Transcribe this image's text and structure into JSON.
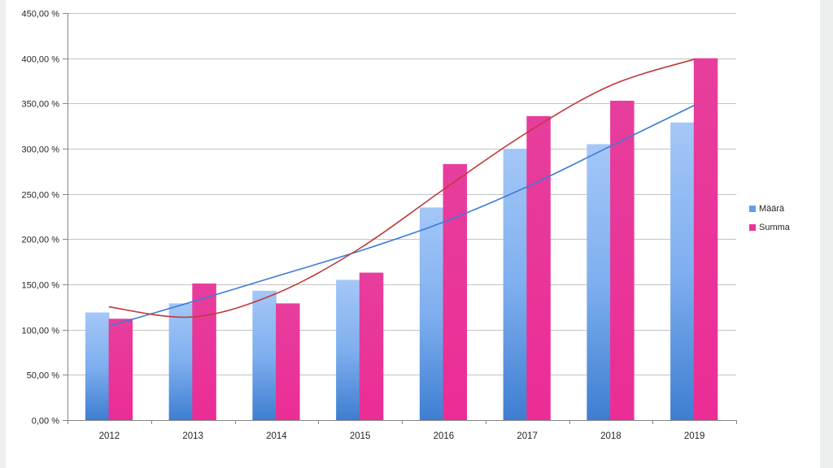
{
  "page": {
    "background": "#ffffff",
    "left_margin_color": "#efefef",
    "right_margin_color": "#edeeee"
  },
  "chart_data": {
    "type": "bar",
    "title": "",
    "xlabel": "",
    "ylabel": "",
    "categories": [
      "2012",
      "2013",
      "2014",
      "2015",
      "2016",
      "2017",
      "2018",
      "2019"
    ],
    "series": [
      {
        "name": "Määrä",
        "values": [
          119,
          129,
          143,
          155,
          235,
          300,
          305,
          329
        ],
        "color_top": "#a4c7f7",
        "color_mid": "#7fafef",
        "color_bottom": "#3e7ed1",
        "legend_color": "#61a1e9"
      },
      {
        "name": "Summa",
        "values": [
          112,
          151,
          129,
          163,
          283,
          336,
          353,
          400
        ],
        "color_top": "#e73e9d",
        "color_mid": "#e93599",
        "color_bottom": "#eb2d95",
        "legend_color": "#e7349a"
      }
    ],
    "trendlines": [
      {
        "series": "Määrä",
        "color": "#3c7bd8",
        "values": [
          104,
          131,
          159,
          187,
          219,
          258,
          303,
          348
        ]
      },
      {
        "series": "Summa",
        "color": "#be3a3a",
        "values": [
          125,
          114,
          140,
          190,
          255,
          318,
          370,
          399
        ]
      }
    ],
    "y_axis": {
      "min": 0,
      "max": 450,
      "step": 50,
      "tick_labels": [
        "0,00 %",
        "50,00 %",
        "100,00 %",
        "150,00 %",
        "200,00 %",
        "250,00 %",
        "300,00 %",
        "350,00 %",
        "400,00 %",
        "450,00 %"
      ]
    },
    "grid": true,
    "legend_position": "right",
    "colors": {
      "gridline": "#c3c3c3",
      "axis": "#868686",
      "tick_text": "#262626"
    }
  }
}
